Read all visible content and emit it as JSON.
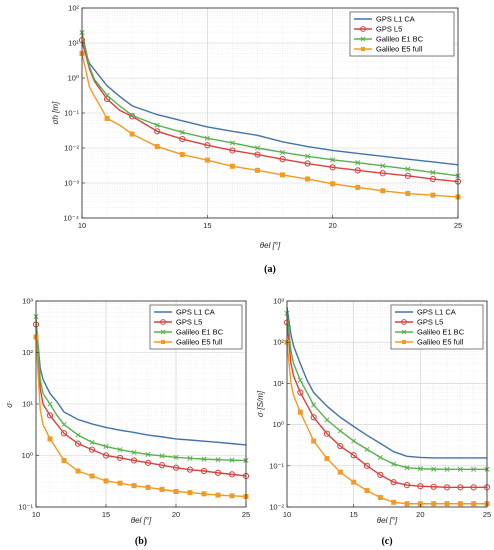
{
  "chart_data": [
    {
      "type": "line",
      "caption": "(a)",
      "xlabel": "θel [°]",
      "ylabel": "σh [m]",
      "log_y": true,
      "xlim": [
        10,
        25
      ],
      "ylim": [
        0.0001,
        100
      ],
      "xticks": [
        "10",
        "15",
        "20",
        "25"
      ],
      "yticks": [
        "10⁻⁴",
        "10⁻³",
        "10⁻²",
        "10⁻¹",
        "10⁰",
        "10¹",
        "10²"
      ],
      "grid": true,
      "legend": "top-right",
      "x": [
        10,
        10.3,
        10.5,
        11,
        11.5,
        12,
        13,
        14,
        15,
        16,
        17,
        18,
        19,
        20,
        21,
        22,
        23,
        24,
        25
      ],
      "series": [
        {
          "name": "GPS L1 CA",
          "color": "#4472a8",
          "marker": "none",
          "values": [
            10,
            2.6,
            1.7,
            0.6,
            0.3,
            0.16,
            0.09,
            0.06,
            0.04,
            0.03,
            0.023,
            0.015,
            0.011,
            0.0085,
            0.007,
            0.0058,
            0.0048,
            0.004,
            0.0033
          ]
        },
        {
          "name": "GPS L5",
          "color": "#d6423e",
          "marker": "circle",
          "values": [
            12,
            1.8,
            0.8,
            0.25,
            0.12,
            0.08,
            0.03,
            0.018,
            0.012,
            0.0085,
            0.0065,
            0.0048,
            0.0036,
            0.0028,
            0.0023,
            0.0019,
            0.0016,
            0.0013,
            0.0011
          ]
        },
        {
          "name": "Galileo E1 BC",
          "color": "#5ab04e",
          "marker": "x",
          "values": [
            20,
            2.1,
            0.9,
            0.32,
            0.16,
            0.085,
            0.045,
            0.028,
            0.019,
            0.014,
            0.01,
            0.0075,
            0.0058,
            0.0046,
            0.0038,
            0.0031,
            0.0025,
            0.002,
            0.0016
          ]
        },
        {
          "name": "Galileo E5 full",
          "color": "#f39a24",
          "marker": "square",
          "values": [
            5,
            0.55,
            0.3,
            0.07,
            0.045,
            0.025,
            0.011,
            0.0065,
            0.0045,
            0.003,
            0.0023,
            0.0017,
            0.0013,
            0.00095,
            0.00075,
            0.0006,
            0.0005,
            0.00045,
            0.0004
          ]
        }
      ]
    },
    {
      "type": "line",
      "caption": "(b)",
      "xlabel": "θel [°]",
      "ylabel": "σ·",
      "log_y": true,
      "xlim": [
        10,
        25
      ],
      "ylim": [
        0.1,
        1000
      ],
      "xticks": [
        "10",
        "15",
        "20",
        "25"
      ],
      "yticks": [
        "10⁻¹",
        "10⁰",
        "10¹",
        "10²",
        "10³"
      ],
      "grid": true,
      "legend": "top-right",
      "x": [
        10,
        10.3,
        10.5,
        11,
        11.5,
        12,
        13,
        14,
        15,
        16,
        17,
        18,
        19,
        20,
        21,
        22,
        23,
        24,
        25
      ],
      "series": [
        {
          "name": "GPS L1 CA",
          "color": "#4472a8",
          "marker": "none",
          "values": [
            400,
            50,
            30,
            16,
            11,
            7,
            5,
            4.1,
            3.5,
            3.1,
            2.8,
            2.5,
            2.3,
            2.1,
            2,
            1.9,
            1.8,
            1.7,
            1.6
          ]
        },
        {
          "name": "GPS L5",
          "color": "#d6423e",
          "marker": "circle",
          "values": [
            350,
            20,
            10,
            6,
            4,
            2.7,
            1.7,
            1.3,
            1,
            0.9,
            0.8,
            0.72,
            0.65,
            0.58,
            0.53,
            0.5,
            0.46,
            0.43,
            0.4
          ]
        },
        {
          "name": "Galileo E1 BC",
          "color": "#5ab04e",
          "marker": "x",
          "values": [
            500,
            30,
            16,
            10,
            6,
            4,
            2.5,
            1.8,
            1.5,
            1.3,
            1.15,
            1.05,
            0.98,
            0.92,
            0.88,
            0.85,
            0.83,
            0.81,
            0.8
          ]
        },
        {
          "name": "Galileo E5 full",
          "color": "#f39a24",
          "marker": "square",
          "values": [
            200,
            8,
            4,
            2.1,
            1.3,
            0.8,
            0.5,
            0.4,
            0.32,
            0.29,
            0.26,
            0.24,
            0.22,
            0.2,
            0.19,
            0.18,
            0.17,
            0.165,
            0.16
          ]
        }
      ]
    },
    {
      "type": "line",
      "caption": "(c)",
      "xlabel": "θel [°]",
      "ylabel": "σ·[S/m]",
      "log_y": true,
      "xlim": [
        10,
        25
      ],
      "ylim": [
        0.01,
        1000
      ],
      "xticks": [
        "10",
        "15",
        "20",
        "25"
      ],
      "yticks": [
        "10⁻²",
        "10⁻¹",
        "10⁰",
        "10¹",
        "10²",
        "10³"
      ],
      "grid": true,
      "legend": "top-right",
      "x": [
        10,
        10.3,
        10.5,
        11,
        11.5,
        12,
        13,
        14,
        15,
        16,
        17,
        18,
        19,
        20,
        21,
        22,
        23,
        24,
        25
      ],
      "series": [
        {
          "name": "GPS L1 CA",
          "color": "#4472a8",
          "marker": "none",
          "values": [
            700,
            150,
            80,
            30,
            12,
            6,
            2.8,
            1.5,
            0.9,
            0.55,
            0.35,
            0.22,
            0.17,
            0.16,
            0.155,
            0.155,
            0.155,
            0.155,
            0.155
          ]
        },
        {
          "name": "GPS L5",
          "color": "#d6423e",
          "marker": "circle",
          "values": [
            300,
            30,
            15,
            6,
            3,
            1.5,
            0.6,
            0.3,
            0.18,
            0.1,
            0.06,
            0.04,
            0.034,
            0.032,
            0.031,
            0.03,
            0.03,
            0.03,
            0.03
          ]
        },
        {
          "name": "Galileo E1 BC",
          "color": "#5ab04e",
          "marker": "x",
          "values": [
            500,
            60,
            30,
            12,
            6,
            3,
            1.3,
            0.7,
            0.4,
            0.25,
            0.16,
            0.11,
            0.09,
            0.085,
            0.083,
            0.082,
            0.082,
            0.082,
            0.082
          ]
        },
        {
          "name": "Galileo E5 full",
          "color": "#f39a24",
          "marker": "square",
          "values": [
            100,
            10,
            5,
            2,
            0.9,
            0.4,
            0.15,
            0.07,
            0.04,
            0.025,
            0.017,
            0.013,
            0.012,
            0.012,
            0.012,
            0.012,
            0.012,
            0.012,
            0.012
          ]
        }
      ]
    }
  ]
}
